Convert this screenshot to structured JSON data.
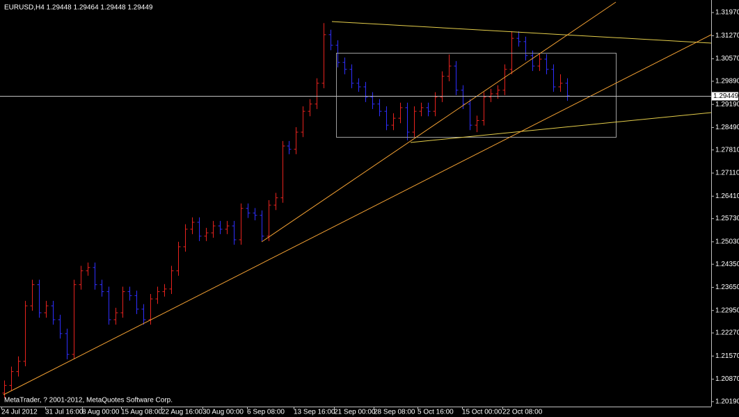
{
  "chart_data": {
    "type": "ohlc",
    "title": "EURUSD,H4  1.29448 1.29464 1.29448 1.29449",
    "copyright": "MetaTrader, ? 2001-2012, MetaQuotes Software Corp.",
    "up_color": "#e8231e",
    "down_color": "#2f2fff",
    "open": [
      1.2045,
      1.2068,
      1.211,
      1.2141,
      1.2309,
      1.2373,
      1.2288,
      1.2309,
      1.2267,
      1.2225,
      1.2162,
      1.2373,
      1.2415,
      1.2425,
      1.2373,
      1.2352,
      1.2267,
      1.2288,
      1.2352,
      1.234,
      1.2299,
      1.2267,
      1.233,
      1.2352,
      1.236,
      1.2415,
      1.2488,
      1.2541,
      1.2562,
      1.252,
      1.253,
      1.2551,
      1.2541,
      1.2551,
      1.2509,
      1.2604,
      1.259,
      1.2583,
      1.252,
      1.2614,
      1.2636,
      1.2793,
      1.2783,
      1.2835,
      1.2898,
      1.292,
      1.2983,
      1.313,
      1.3098,
      1.3046,
      1.3025,
      1.2983,
      1.2972,
      1.2941,
      1.292,
      1.2898,
      1.2856,
      1.2877,
      1.2909,
      1.2835,
      1.2898,
      1.2909,
      1.2898,
      1.2941,
      1.3004,
      1.3035,
      1.2962,
      1.292,
      1.2856,
      1.287,
      1.2941,
      1.2951,
      1.2962,
      1.3025,
      1.3119,
      1.3109,
      1.3067,
      1.3035,
      1.3056,
      1.3025,
      1.2972,
      1.2983
    ],
    "high": [
      1.2083,
      1.2125,
      1.2156,
      1.2324,
      1.2388,
      1.2388,
      1.2324,
      1.2324,
      1.2282,
      1.224,
      1.2388,
      1.243,
      1.244,
      1.244,
      1.2388,
      1.2367,
      1.2303,
      1.2367,
      1.2367,
      1.2355,
      1.2314,
      1.2345,
      1.2367,
      1.2375,
      1.243,
      1.2503,
      1.2556,
      1.2577,
      1.2577,
      1.2545,
      1.2566,
      1.2566,
      1.2566,
      1.2566,
      1.2619,
      1.2619,
      1.2605,
      1.2598,
      1.2629,
      1.2651,
      1.2808,
      1.2808,
      1.285,
      1.2913,
      1.2935,
      1.2998,
      1.3165,
      1.3145,
      1.3113,
      1.3061,
      1.304,
      1.2998,
      1.2987,
      1.2956,
      1.2935,
      1.2913,
      1.2892,
      1.2924,
      1.2924,
      1.2913,
      1.2924,
      1.2924,
      1.2956,
      1.3019,
      1.307,
      1.305,
      1.2977,
      1.2935,
      1.2885,
      1.2956,
      1.2966,
      1.2977,
      1.304,
      1.314,
      1.314,
      1.3124,
      1.3082,
      1.3071,
      1.3071,
      1.304,
      1.301,
      1.2998
    ],
    "low": [
      1.203,
      1.2053,
      1.2095,
      1.2126,
      1.2294,
      1.2273,
      1.2273,
      1.2252,
      1.221,
      1.2147,
      1.2147,
      1.2358,
      1.24,
      1.2358,
      1.2337,
      1.2252,
      1.2252,
      1.2273,
      1.2325,
      1.2284,
      1.2252,
      1.2252,
      1.2315,
      1.2337,
      1.2345,
      1.24,
      1.2473,
      1.2526,
      1.2505,
      1.2505,
      1.2515,
      1.2526,
      1.2526,
      1.2494,
      1.2494,
      1.2575,
      1.2568,
      1.2505,
      1.2505,
      1.2599,
      1.2621,
      1.2768,
      1.2768,
      1.282,
      1.2883,
      1.2905,
      1.2968,
      1.3083,
      1.3031,
      1.301,
      1.2968,
      1.2957,
      1.2926,
      1.2905,
      1.2883,
      1.2841,
      1.2841,
      1.2862,
      1.281,
      1.282,
      1.2883,
      1.2883,
      1.2883,
      1.2926,
      1.2989,
      1.2947,
      1.2905,
      1.2841,
      1.2835,
      1.2855,
      1.2926,
      1.2936,
      1.2947,
      1.301,
      1.3094,
      1.3052,
      1.302,
      1.302,
      1.301,
      1.2957,
      1.2957,
      1.293
    ],
    "close": [
      1.2068,
      1.211,
      1.2141,
      1.2309,
      1.2373,
      1.2288,
      1.2309,
      1.2267,
      1.2225,
      1.2162,
      1.2373,
      1.2415,
      1.2425,
      1.2373,
      1.2352,
      1.2267,
      1.2288,
      1.2352,
      1.234,
      1.2299,
      1.2267,
      1.233,
      1.2352,
      1.236,
      1.2415,
      1.2488,
      1.2541,
      1.2562,
      1.252,
      1.253,
      1.2551,
      1.2541,
      1.2551,
      1.2509,
      1.2604,
      1.259,
      1.2583,
      1.252,
      1.2614,
      1.2636,
      1.2793,
      1.2783,
      1.2835,
      1.2898,
      1.292,
      1.2983,
      1.313,
      1.3098,
      1.3046,
      1.3025,
      1.2983,
      1.2972,
      1.2941,
      1.292,
      1.2898,
      1.2856,
      1.2877,
      1.2909,
      1.2835,
      1.2898,
      1.2909,
      1.2898,
      1.2941,
      1.3004,
      1.3035,
      1.2962,
      1.292,
      1.2856,
      1.287,
      1.2941,
      1.2951,
      1.2962,
      1.3025,
      1.3119,
      1.3109,
      1.3067,
      1.3035,
      1.3056,
      1.3025,
      1.2972,
      1.2983,
      1.2945
    ],
    "xticks": [
      "24 Jul 2012",
      "31 Jul 16:00",
      "8 Aug 00:00",
      "15 Aug 08:00",
      "22 Aug 16:00",
      "30 Aug 00:00",
      "6 Sep 08:00",
      "13 Sep 16:00",
      "21 Sep 00:00",
      "28 Sep 08:00",
      "5 Oct 16:00",
      "15 Oct 00:00",
      "22 Oct 08:00"
    ],
    "ylim": [
      1.2004,
      1.3235
    ],
    "yticks": [
      {
        "value": 1.3197,
        "label": "1.31970"
      },
      {
        "value": 1.3127,
        "label": "1.31270"
      },
      {
        "value": 1.3057,
        "label": "1.30570"
      },
      {
        "value": 1.2989,
        "label": "1.29890"
      },
      {
        "value": 1.2919,
        "label": "1.29190"
      },
      {
        "value": 1.2849,
        "label": "1.28490"
      },
      {
        "value": 1.2781,
        "label": "1.27810"
      },
      {
        "value": 1.2711,
        "label": "1.27110"
      },
      {
        "value": 1.2641,
        "label": "1.26410"
      },
      {
        "value": 1.2573,
        "label": "1.25730"
      },
      {
        "value": 1.2503,
        "label": "1.25030"
      },
      {
        "value": 1.2435,
        "label": "1.24350"
      },
      {
        "value": 1.2365,
        "label": "1.23650"
      },
      {
        "value": 1.2295,
        "label": "1.22950"
      },
      {
        "value": 1.2227,
        "label": "1.22270"
      },
      {
        "value": 1.2157,
        "label": "1.21570"
      },
      {
        "value": 1.2087,
        "label": "1.20870"
      },
      {
        "value": 1.2019,
        "label": "1.20190"
      }
    ],
    "current_price": {
      "value": 1.29449,
      "label": "1.29449"
    }
  }
}
